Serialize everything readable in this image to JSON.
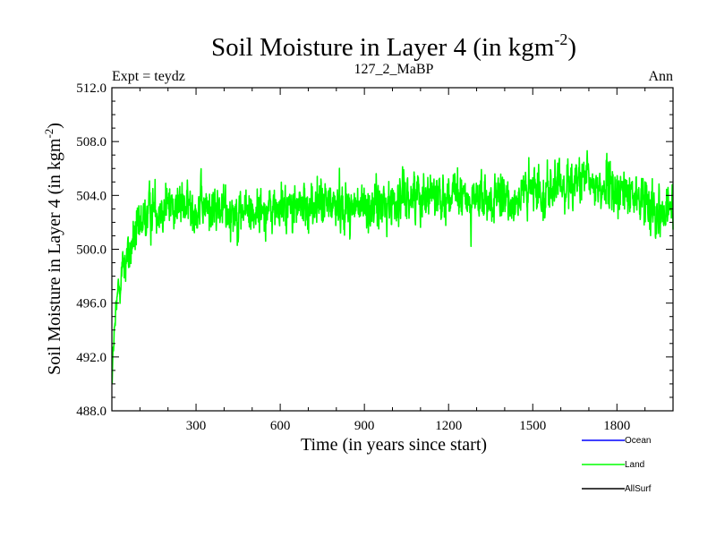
{
  "chart_data": {
    "type": "line",
    "title": "Soil Moisture in Layer 4 (in kgm",
    "title_sup": "-2",
    "title_close": ")",
    "left_label": "Expt = teydz",
    "center_label": "127_2_MaBP",
    "right_label": "Ann",
    "xlabel": "Time (in years since start)",
    "ylabel": "Soil Moisture in Layer 4 (in kgm",
    "ylabel_sup": "-2",
    "ylabel_close": ")",
    "xlim": [
      0,
      2000
    ],
    "ylim": [
      488.0,
      512.0
    ],
    "x_ticks": [
      300,
      600,
      900,
      1200,
      1500,
      1800
    ],
    "x_tick_labels": [
      "300",
      "600",
      "900",
      "1200",
      "1500",
      "1800"
    ],
    "y_ticks": [
      488.0,
      492.0,
      496.0,
      500.0,
      504.0,
      508.0,
      512.0
    ],
    "y_tick_labels": [
      "488.0",
      "492.0",
      "496.0",
      "500.0",
      "504.0",
      "508.0",
      "512.0"
    ],
    "anchors": {
      "x": [
        0,
        5,
        12,
        20,
        30,
        45,
        60,
        80,
        100,
        130,
        160,
        200,
        300,
        450,
        600,
        800,
        900,
        1000,
        1100,
        1200,
        1300,
        1400,
        1500,
        1600,
        1650,
        1700,
        1800,
        1900,
        1950,
        1980,
        2000
      ],
      "y": [
        490.0,
        492.5,
        494.5,
        496.5,
        498.0,
        499.0,
        499.5,
        500.8,
        501.5,
        502.8,
        503.2,
        503.3,
        503.1,
        502.8,
        503.0,
        503.4,
        503.0,
        503.5,
        504.2,
        504.0,
        503.6,
        503.5,
        504.3,
        504.6,
        505.2,
        504.9,
        504.3,
        503.7,
        503.0,
        502.8,
        503.5
      ]
    },
    "noise_amplitude": 1.6,
    "seed": 12345,
    "series": [
      {
        "name": "Ocean",
        "color": "#0000ff"
      },
      {
        "name": "Land",
        "color": "#00ff00"
      },
      {
        "name": "AllSurf",
        "color": "#000000"
      }
    ]
  }
}
